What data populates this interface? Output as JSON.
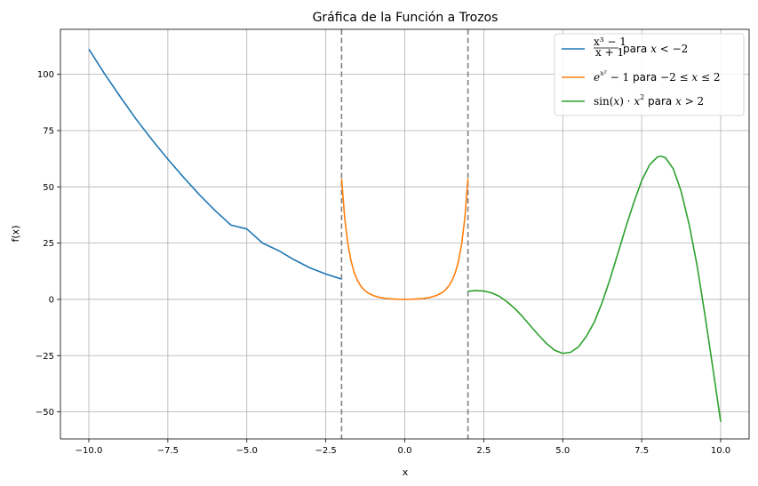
{
  "chart_data": {
    "type": "line",
    "title": "Gráfica de la Función a Trozos",
    "xlabel": "x",
    "ylabel": "f(x)",
    "xlim": [
      -10.9,
      10.9
    ],
    "ylim": [
      -62,
      120
    ],
    "xticks": [
      -10.0,
      -7.5,
      -5.0,
      -2.5,
      0.0,
      2.5,
      5.0,
      7.5,
      10.0
    ],
    "xtick_labels": [
      "−10.0",
      "−7.5",
      "−5.0",
      "−2.5",
      "0.0",
      "2.5",
      "5.0",
      "7.5",
      "10.0"
    ],
    "yticks": [
      -50,
      -25,
      0,
      25,
      50,
      75,
      100
    ],
    "ytick_labels": [
      "−50",
      "−25",
      "0",
      "25",
      "50",
      "75",
      "100"
    ],
    "grid": true,
    "legend_position": "top-right",
    "vlines": [
      {
        "x": -2,
        "style": "dashed",
        "color": "#808080"
      },
      {
        "x": 2,
        "style": "dashed",
        "color": "#808080"
      }
    ],
    "series": [
      {
        "name": "x³−1 / x+1 para x < −2",
        "color": "#1f77b4",
        "points": [
          [
            -10,
            111.2
          ],
          [
            -9.5,
            100.2
          ],
          [
            -9,
            89.9
          ],
          [
            -8.5,
            80.0
          ],
          [
            -8,
            70.9
          ],
          [
            -7.5,
            62.3
          ],
          [
            -7,
            54.2
          ],
          [
            -6.5,
            46.5
          ],
          [
            -6,
            39.4
          ],
          [
            -5.5,
            33.0
          ],
          [
            -5,
            31.3
          ],
          [
            -4.5,
            25.0
          ],
          [
            -4,
            21.7
          ],
          [
            -3.5,
            17.6
          ],
          [
            -3,
            14.0
          ],
          [
            -2.5,
            11.3
          ],
          [
            -2,
            9.0
          ]
        ]
      },
      {
        "name": "e^{x²} − 1 para −2 ≤ x ≤ 2",
        "color": "#ff7f0e",
        "points": [
          [
            -2,
            53.6
          ],
          [
            -1.9,
            36.0
          ],
          [
            -1.8,
            24.5
          ],
          [
            -1.7,
            17.0
          ],
          [
            -1.6,
            11.9
          ],
          [
            -1.5,
            8.5
          ],
          [
            -1.4,
            6.1
          ],
          [
            -1.3,
            4.4
          ],
          [
            -1.2,
            3.2
          ],
          [
            -1.1,
            2.4
          ],
          [
            -1,
            1.7
          ],
          [
            -0.8,
            0.9
          ],
          [
            -0.6,
            0.4
          ],
          [
            -0.4,
            0.2
          ],
          [
            -0.2,
            0.04
          ],
          [
            0,
            0
          ],
          [
            0.2,
            0.04
          ],
          [
            0.4,
            0.2
          ],
          [
            0.6,
            0.4
          ],
          [
            0.8,
            0.9
          ],
          [
            1,
            1.7
          ],
          [
            1.1,
            2.4
          ],
          [
            1.2,
            3.2
          ],
          [
            1.3,
            4.4
          ],
          [
            1.4,
            6.1
          ],
          [
            1.5,
            8.5
          ],
          [
            1.6,
            11.9
          ],
          [
            1.7,
            17.0
          ],
          [
            1.8,
            24.5
          ],
          [
            1.9,
            36.0
          ],
          [
            2,
            53.6
          ]
        ]
      },
      {
        "name": "sin(x) · x² para x > 2",
        "color": "#2ca02c",
        "points": [
          [
            2.0,
            3.6
          ],
          [
            2.25,
            3.9
          ],
          [
            2.5,
            3.7
          ],
          [
            2.75,
            2.9
          ],
          [
            3.0,
            1.3
          ],
          [
            3.25,
            -1.2
          ],
          [
            3.5,
            -4.3
          ],
          [
            3.75,
            -8.0
          ],
          [
            4.0,
            -12.1
          ],
          [
            4.25,
            -16.1
          ],
          [
            4.5,
            -19.8
          ],
          [
            4.75,
            -22.6
          ],
          [
            5.0,
            -24.0
          ],
          [
            5.25,
            -23.5
          ],
          [
            5.5,
            -21.1
          ],
          [
            5.75,
            -16.4
          ],
          [
            6.0,
            -10.1
          ],
          [
            6.25,
            -1.3
          ],
          [
            6.5,
            9.1
          ],
          [
            6.75,
            20.6
          ],
          [
            7.0,
            32.2
          ],
          [
            7.25,
            43.0
          ],
          [
            7.5,
            52.8
          ],
          [
            7.75,
            59.8
          ],
          [
            8.0,
            63.3
          ],
          [
            8.1,
            63.6
          ],
          [
            8.25,
            63.0
          ],
          [
            8.5,
            58.0
          ],
          [
            8.75,
            47.9
          ],
          [
            9.0,
            33.4
          ],
          [
            9.25,
            15.3
          ],
          [
            9.5,
            -6.8
          ],
          [
            9.75,
            -30.3
          ],
          [
            10.0,
            -54.4
          ]
        ]
      }
    ]
  }
}
